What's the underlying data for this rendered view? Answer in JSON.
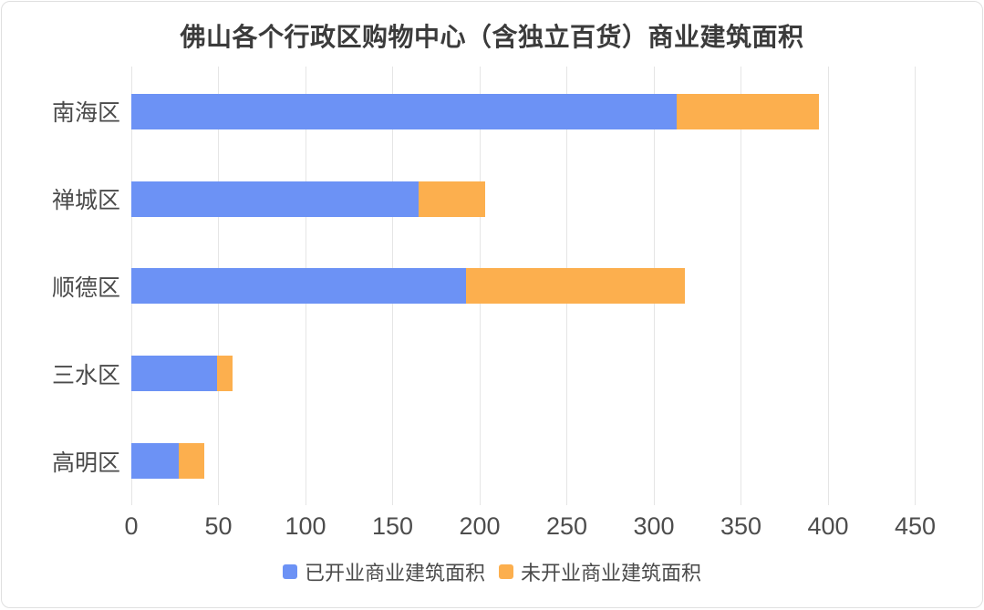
{
  "chart_data": {
    "type": "bar",
    "orientation": "horizontal",
    "stacked": true,
    "title": "佛山各个行政区购物中心（含独立百货）商业建筑面积",
    "categories": [
      "南海区",
      "禅城区",
      "顺德区",
      "三水区",
      "高明区"
    ],
    "series": [
      {
        "key": "opened",
        "name": "已开业商业建筑面积",
        "color": "#6C92F5",
        "values": [
          313,
          165,
          192,
          49,
          27
        ]
      },
      {
        "key": "unopened",
        "name": "未开业商业建筑面积",
        "color": "#FCAF4E",
        "values": [
          82,
          38,
          126,
          9,
          15
        ]
      }
    ],
    "x_ticks": [
      0,
      50,
      100,
      150,
      200,
      250,
      300,
      350,
      400,
      450
    ],
    "xlim": [
      0,
      450
    ],
    "grid": true,
    "legend_position": "bottom",
    "colors": {
      "grid_line": "#e5e5e5",
      "title_text": "#3b3b3b",
      "axis_text": "#4d4d4d"
    }
  }
}
